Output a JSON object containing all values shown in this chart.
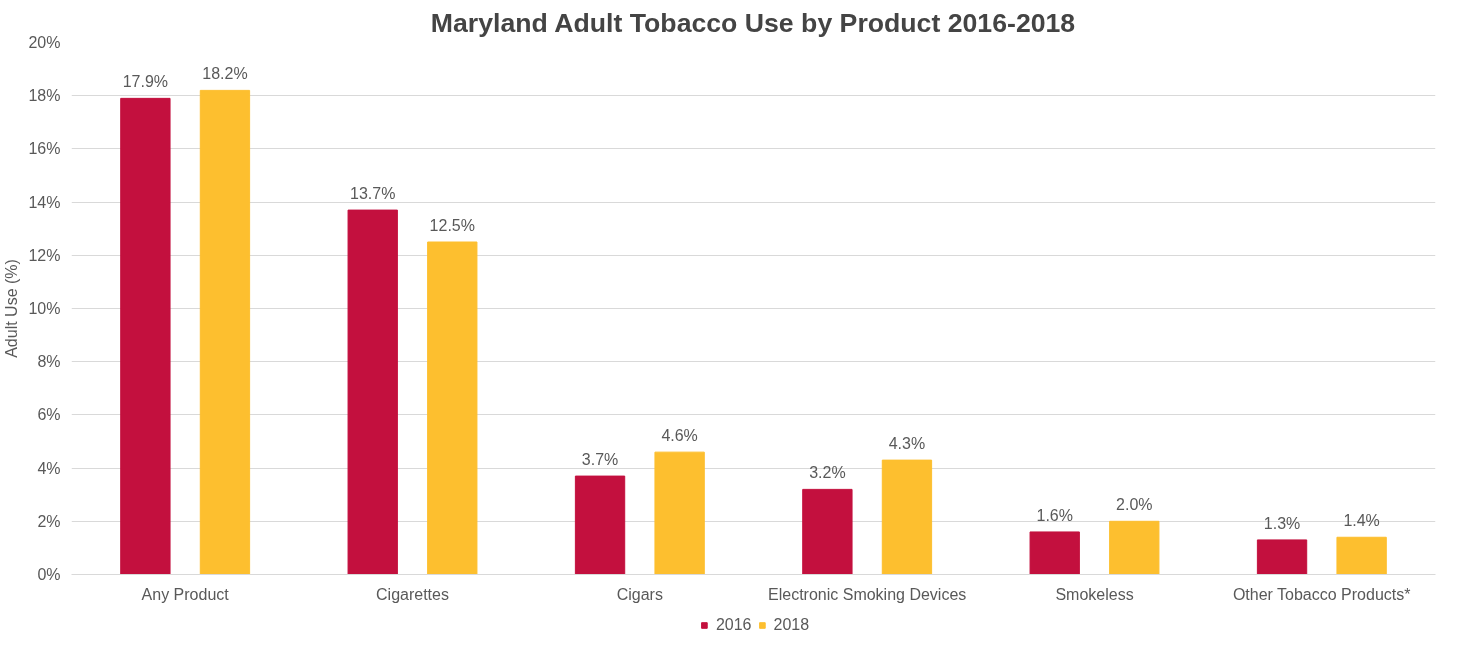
{
  "chart_data": {
    "type": "bar",
    "title": "Maryland Adult Tobacco Use by Product 2016-2018",
    "ylabel": "Adult Use (%)",
    "categories": [
      "Any Product",
      "Cigarettes",
      "Cigars",
      "Electronic Smoking Devices",
      "Smokeless",
      "Other Tobacco Products*"
    ],
    "series": [
      {
        "name": "2016",
        "color": "#c3103e",
        "values": [
          17.9,
          13.7,
          3.7,
          3.2,
          1.6,
          1.3
        ],
        "value_labels": [
          "17.9%",
          "13.7%",
          "3.7%",
          "3.2%",
          "1.6%",
          "1.3%"
        ]
      },
      {
        "name": "2018",
        "color": "#fdbf2f",
        "values": [
          18.2,
          12.5,
          4.6,
          4.3,
          2.0,
          1.4
        ],
        "value_labels": [
          "18.2%",
          "12.5%",
          "4.6%",
          "4.3%",
          "2.0%",
          "1.4%"
        ]
      }
    ],
    "ylim": [
      0,
      20
    ],
    "yticks": [
      {
        "value": 0,
        "label": "0%"
      },
      {
        "value": 2,
        "label": "2%"
      },
      {
        "value": 4,
        "label": "4%"
      },
      {
        "value": 6,
        "label": "6%"
      },
      {
        "value": 8,
        "label": "8%"
      },
      {
        "value": 10,
        "label": "10%"
      },
      {
        "value": 12,
        "label": "12%"
      },
      {
        "value": 14,
        "label": "14%"
      },
      {
        "value": 16,
        "label": "16%"
      },
      {
        "value": 18,
        "label": "18%"
      },
      {
        "value": 20,
        "label": "20%"
      }
    ],
    "grid": "y",
    "legend": "bottom"
  }
}
